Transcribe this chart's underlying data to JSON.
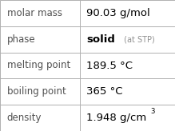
{
  "rows": [
    {
      "label": "molar mass",
      "value": "90.03 g/mol",
      "suffix": null,
      "superscript": null
    },
    {
      "label": "phase",
      "value": "solid",
      "suffix": " (at STP)",
      "superscript": null
    },
    {
      "label": "melting point",
      "value": "189.5 °C",
      "suffix": null,
      "superscript": null
    },
    {
      "label": "boiling point",
      "value": "365 °C",
      "suffix": null,
      "superscript": null
    },
    {
      "label": "density",
      "value": "1.948 g/cm³",
      "suffix": null,
      "superscript": null
    }
  ],
  "background_color": "#ffffff",
  "border_color": "#b0b0b0",
  "label_color": "#505050",
  "value_color": "#000000",
  "suffix_color": "#909090",
  "label_fontsize": 8.5,
  "value_fontsize": 9.5,
  "suffix_fontsize": 7.0,
  "col_split": 0.455
}
